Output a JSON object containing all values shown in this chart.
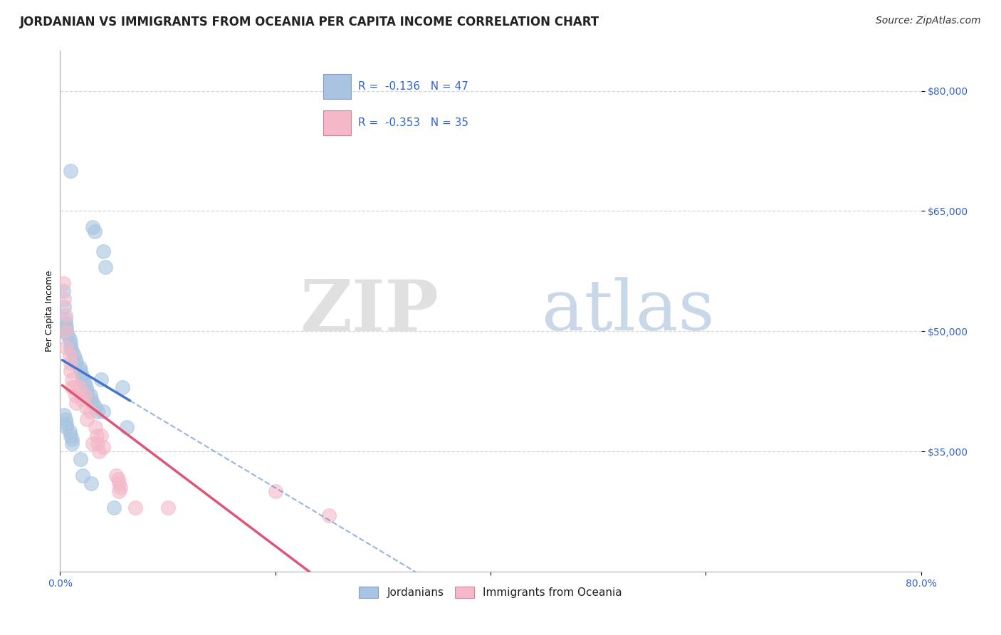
{
  "title": "JORDANIAN VS IMMIGRANTS FROM OCEANIA PER CAPITA INCOME CORRELATION CHART",
  "source": "Source: ZipAtlas.com",
  "ylabel": "Per Capita Income",
  "blue_label": "Jordanians",
  "pink_label": "Immigrants from Oceania",
  "blue_R": -0.136,
  "blue_N": 47,
  "pink_R": -0.353,
  "pink_N": 35,
  "xlim": [
    0.0,
    0.8
  ],
  "ylim": [
    20000,
    85000
  ],
  "yticks": [
    35000,
    50000,
    65000,
    80000
  ],
  "ytick_labels": [
    "$35,000",
    "$50,000",
    "$65,000",
    "$80,000"
  ],
  "xticks": [
    0.0,
    0.2,
    0.4,
    0.6,
    0.8
  ],
  "xtick_labels": [
    "0.0%",
    "",
    "",
    "",
    "80.0%"
  ],
  "grid_color": "#cccccc",
  "bg_color": "#ffffff",
  "blue_color": "#a8c4e0",
  "pink_color": "#f4b8c8",
  "blue_line_color": "#4477cc",
  "pink_line_color": "#dd5577",
  "blue_scatter_x": [
    0.01,
    0.03,
    0.032,
    0.04,
    0.042,
    0.003,
    0.004,
    0.005,
    0.005,
    0.006,
    0.006,
    0.007,
    0.009,
    0.01,
    0.01,
    0.011,
    0.013,
    0.014,
    0.015,
    0.018,
    0.019,
    0.02,
    0.021,
    0.023,
    0.024,
    0.025,
    0.028,
    0.029,
    0.03,
    0.033,
    0.035,
    0.038,
    0.04,
    0.058,
    0.062,
    0.004,
    0.005,
    0.006,
    0.006,
    0.009,
    0.01,
    0.011,
    0.011,
    0.019,
    0.021,
    0.029,
    0.05
  ],
  "blue_scatter_y": [
    70000,
    63000,
    62500,
    60000,
    58000,
    55000,
    53000,
    51500,
    51000,
    50500,
    50000,
    49500,
    49000,
    48500,
    48000,
    47500,
    47000,
    46500,
    46000,
    45500,
    45000,
    44500,
    44000,
    43500,
    43000,
    42500,
    42000,
    41500,
    41000,
    40500,
    40000,
    44000,
    40000,
    43000,
    38000,
    39500,
    39000,
    38500,
    38000,
    37500,
    37000,
    36500,
    36000,
    34000,
    32000,
    31000,
    28000
  ],
  "pink_scatter_x": [
    0.003,
    0.004,
    0.005,
    0.005,
    0.006,
    0.009,
    0.01,
    0.01,
    0.011,
    0.011,
    0.013,
    0.014,
    0.015,
    0.018,
    0.02,
    0.023,
    0.024,
    0.025,
    0.028,
    0.03,
    0.033,
    0.034,
    0.035,
    0.036,
    0.038,
    0.04,
    0.055,
    0.07,
    0.2,
    0.25,
    0.052,
    0.054,
    0.055,
    0.056,
    0.1
  ],
  "pink_scatter_y": [
    56000,
    54000,
    52000,
    50000,
    48000,
    47000,
    46000,
    45000,
    44000,
    43000,
    43000,
    42000,
    41000,
    43000,
    41500,
    42000,
    40500,
    39000,
    40000,
    36000,
    38000,
    37000,
    36000,
    35000,
    37000,
    35500,
    30000,
    28000,
    30000,
    27000,
    32000,
    31500,
    31000,
    30500,
    28000
  ],
  "title_fontsize": 12,
  "axis_label_fontsize": 9,
  "tick_fontsize": 10,
  "legend_fontsize": 11,
  "source_fontsize": 10
}
